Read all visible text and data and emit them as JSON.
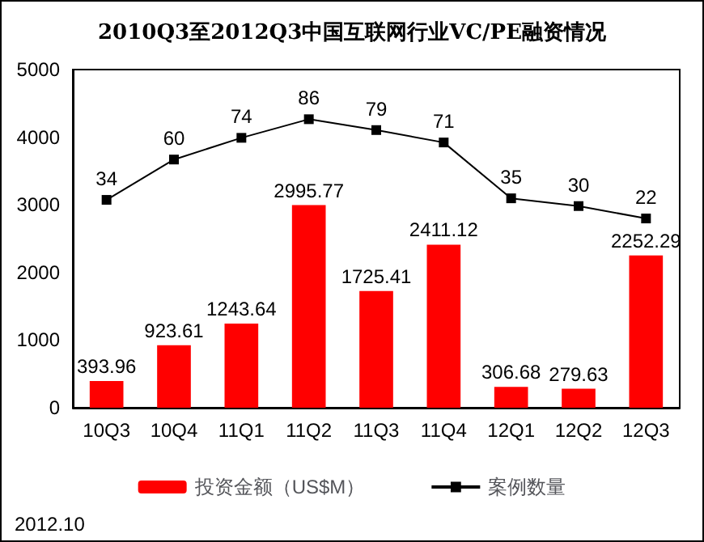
{
  "chart_data": {
    "type": "bar",
    "title": "2010Q3至2012Q3中国互联网行业VC/PE融资情况",
    "categories": [
      "10Q3",
      "10Q4",
      "11Q1",
      "11Q2",
      "11Q3",
      "11Q4",
      "12Q1",
      "12Q2",
      "12Q3"
    ],
    "series": [
      {
        "name": "投资金额（US$M）",
        "color": "#ff0000",
        "values": [
          393.96,
          923.61,
          1243.64,
          2995.77,
          1725.41,
          2411.12,
          306.68,
          279.63,
          2252.29
        ]
      },
      {
        "name": "案例数量",
        "type": "line",
        "axis": "y2",
        "color": "#000000",
        "values": [
          34,
          60,
          74,
          86,
          79,
          71,
          35,
          30,
          22
        ]
      }
    ],
    "ylim": [
      0,
      5000
    ],
    "yticks": [
      0,
      1000,
      2000,
      3000,
      4000,
      5000
    ],
    "y2lim": [
      -100,
      118
    ],
    "tick_labels": "xy",
    "data_labels": true,
    "grid": false,
    "legend": "bottom",
    "marker": "square",
    "line_style": "solid",
    "annotations": [
      "2012.10"
    ]
  }
}
